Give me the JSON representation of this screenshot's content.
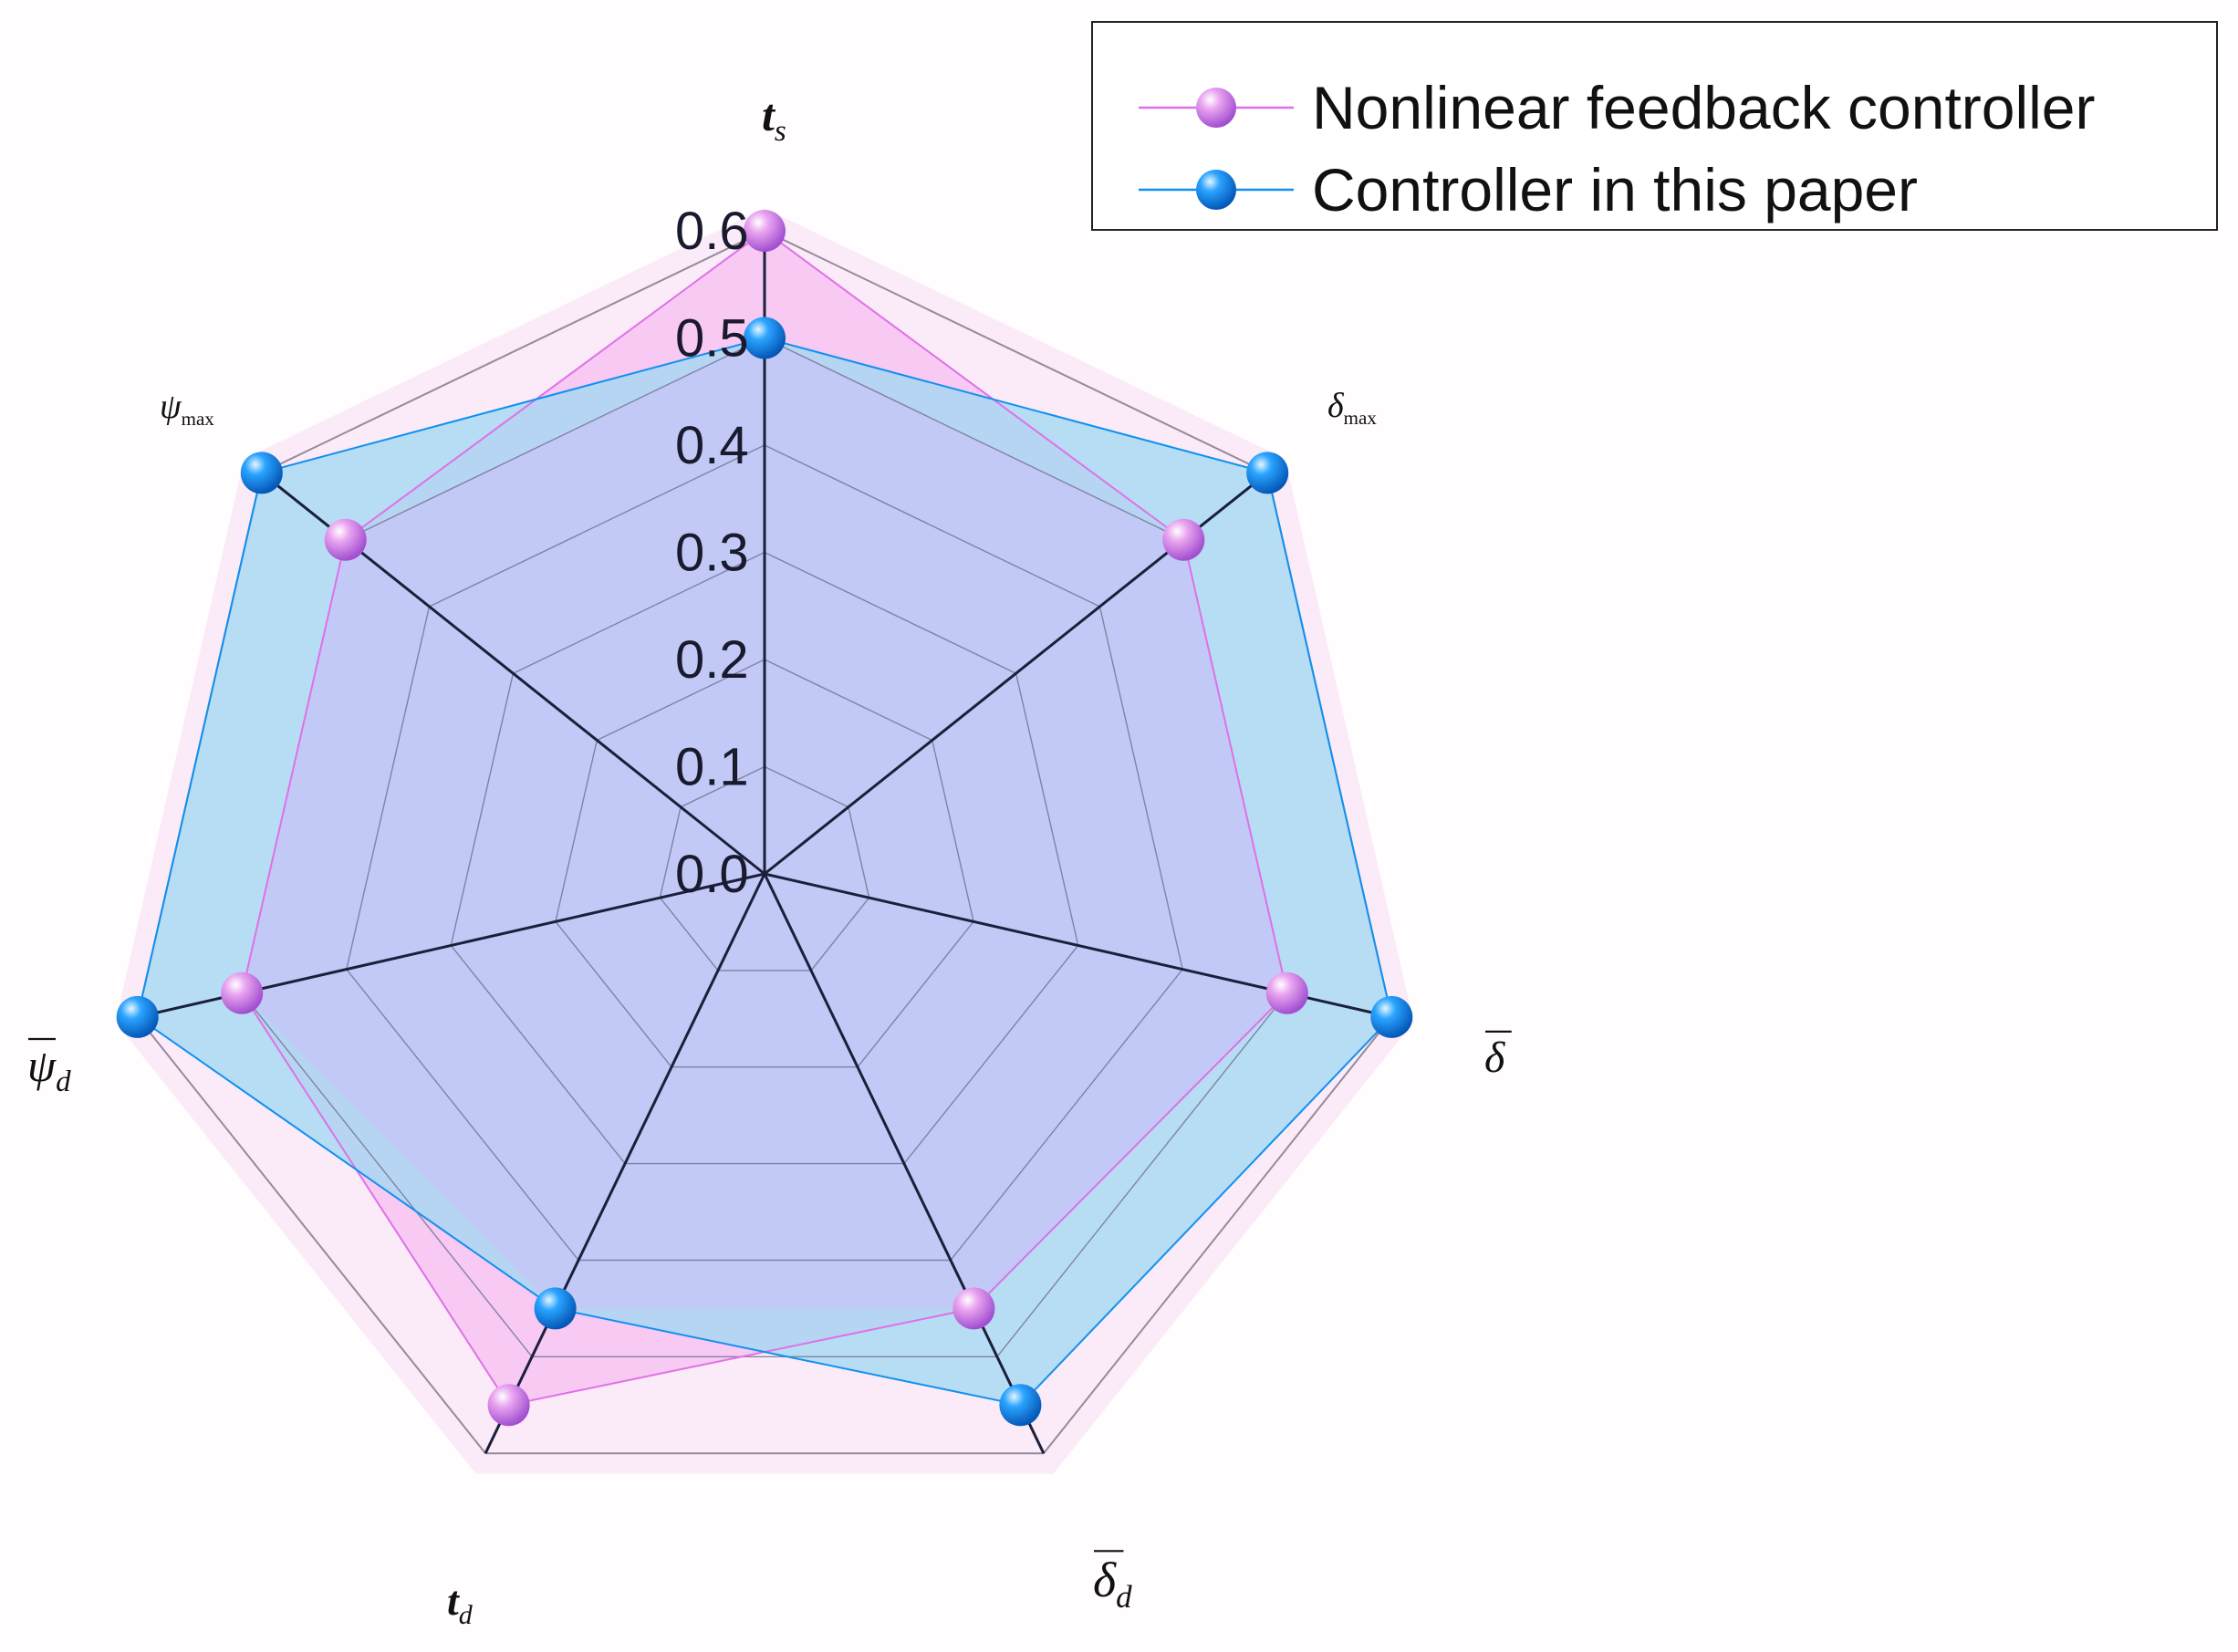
{
  "chart_data": {
    "type": "radar",
    "axes": [
      {
        "main": "t",
        "sub": "s",
        "bar": false
      },
      {
        "main": "δ",
        "sub": "max",
        "bar": false
      },
      {
        "main": "δ",
        "sub": "",
        "bar": true
      },
      {
        "main": "δ",
        "sub": "d",
        "bar": true
      },
      {
        "main": "t",
        "sub": "d",
        "bar": false
      },
      {
        "main": "ψ",
        "sub": "d",
        "bar": true
      },
      {
        "main": "ψ",
        "sub": "max",
        "bar": false
      }
    ],
    "r_range": [
      0,
      0.6
    ],
    "ticks": [
      "0.0",
      "0.1",
      "0.2",
      "0.3",
      "0.4",
      "0.5",
      "0.6"
    ],
    "tick_values": [
      0,
      0.1,
      0.2,
      0.3,
      0.4,
      0.5,
      0.6
    ],
    "series": [
      {
        "name": "Nonlinear feedback controller",
        "color": "#e070e8",
        "marker": "#b06ee0",
        "values": [
          0.6,
          0.5,
          0.5,
          0.45,
          0.55,
          0.5,
          0.5
        ]
      },
      {
        "name": "Controller in this paper",
        "color": "#1090f0",
        "marker": "#0a7ee6",
        "values": [
          0.5,
          0.6,
          0.6,
          0.55,
          0.45,
          0.6,
          0.6
        ]
      }
    ],
    "legend_position": "top-right",
    "grid": true
  }
}
